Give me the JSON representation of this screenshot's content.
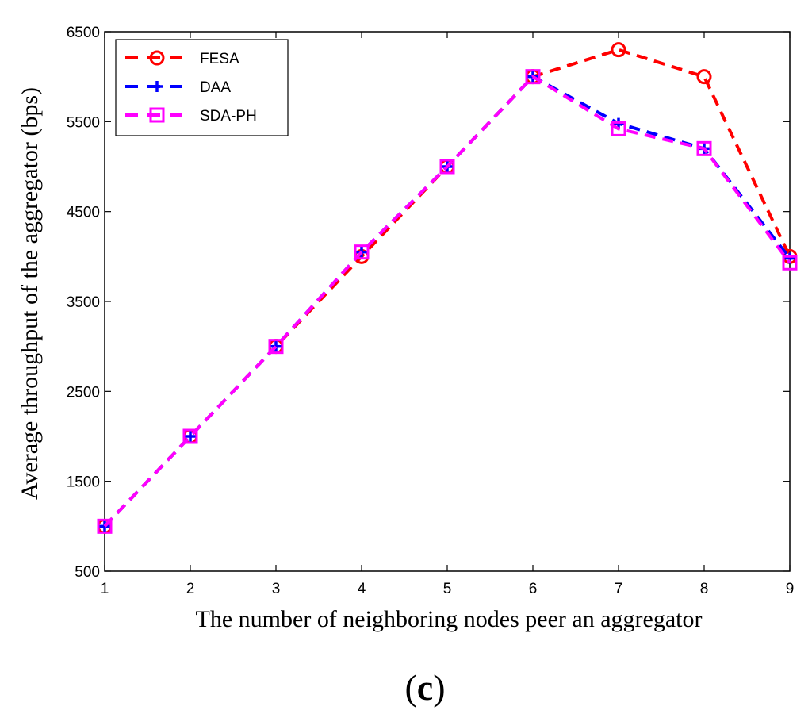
{
  "chart_data": {
    "type": "line",
    "title": "",
    "xlabel": "The number of neighboring nodes peer an aggregator",
    "ylabel": "Average throughput of the aggregator (bps)",
    "x": [
      1,
      2,
      3,
      4,
      5,
      6,
      7,
      8,
      9
    ],
    "xlim": [
      1,
      9
    ],
    "ylim": [
      500,
      6500
    ],
    "xticks": [
      1,
      2,
      3,
      4,
      5,
      6,
      7,
      8,
      9
    ],
    "yticks": [
      500,
      1500,
      2500,
      3500,
      4500,
      5500,
      6500
    ],
    "grid": false,
    "legend_position": "top-left",
    "series": [
      {
        "name": "FESA",
        "color": "#ff0000",
        "marker": "circle",
        "values": [
          1000,
          2000,
          3000,
          4000,
          5000,
          6000,
          6300,
          6000,
          4000
        ]
      },
      {
        "name": "DAA",
        "color": "#0000ff",
        "marker": "plus",
        "values": [
          1000,
          2000,
          3000,
          4050,
          5000,
          6000,
          5480,
          5200,
          3980
        ]
      },
      {
        "name": "SDA-PH",
        "color": "#ff00ff",
        "marker": "square",
        "values": [
          1000,
          2000,
          3000,
          4050,
          5000,
          6000,
          5420,
          5200,
          3930
        ]
      }
    ]
  },
  "panel_label": {
    "open": "(",
    "letter": "c",
    "close": ")"
  }
}
